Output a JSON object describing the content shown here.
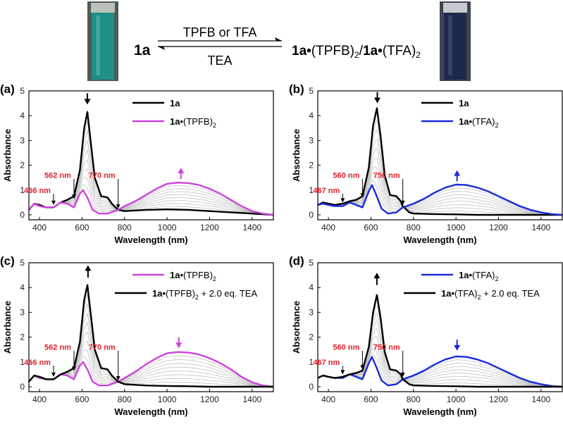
{
  "header": {
    "reactant": "1a",
    "forward_label": "TPFB or TFA",
    "reverse_label": "TEA",
    "product_bold_1": "1a•",
    "product_text_1": "(TPFB)",
    "product_sub_1": "2",
    "product_sep": "/",
    "product_bold_2": "1a•",
    "product_text_2": "(TFA)",
    "product_sub_2": "2",
    "left_vial_color": "#1d8f88",
    "right_vial_color": "#1b2a4a"
  },
  "chart_data": [
    {
      "type": "line",
      "panel_label": "(a)",
      "xlabel": "Wavelength (nm)",
      "ylabel": "Absorbance",
      "xlim": [
        350,
        1500
      ],
      "ylim": [
        -0.2,
        5
      ],
      "xticks": [
        "400",
        "600",
        "800",
        "1000",
        "1200",
        "1400"
      ],
      "yticks": [
        "0",
        "1",
        "2",
        "3",
        "4",
        "5"
      ],
      "legend_position": "top-right",
      "series": [
        {
          "name": "1a",
          "name_bold": "1a",
          "name_rest": "",
          "name_sub": "",
          "color": "#000000",
          "x": [
            350,
            375,
            400,
            430,
            466,
            500,
            530,
            562,
            590,
            610,
            625,
            640,
            660,
            690,
            720,
            740,
            770,
            800,
            900,
            1000,
            1100,
            1200,
            1300,
            1400,
            1500
          ],
          "y": [
            0.2,
            0.45,
            0.4,
            0.3,
            0.3,
            0.5,
            0.6,
            0.75,
            1.8,
            3.5,
            4.15,
            3.0,
            1.5,
            0.75,
            0.7,
            0.45,
            0.2,
            0.15,
            0.2,
            0.22,
            0.2,
            0.15,
            0.1,
            0.05,
            0.0
          ]
        },
        {
          "name": "1a•(TPFB)2",
          "name_bold": "1a•",
          "name_rest": "(TPFB)",
          "name_sub": "2",
          "color": "#cc44dd",
          "x": [
            350,
            375,
            400,
            430,
            466,
            500,
            530,
            562,
            590,
            605,
            625,
            650,
            680,
            720,
            770,
            800,
            850,
            900,
            950,
            1000,
            1050,
            1100,
            1150,
            1200,
            1250,
            1300,
            1350,
            1400,
            1450,
            1500
          ],
          "y": [
            0.2,
            0.45,
            0.35,
            0.3,
            0.3,
            0.5,
            0.45,
            0.3,
            0.85,
            1.0,
            0.7,
            0.2,
            0.05,
            0.05,
            0.2,
            0.35,
            0.55,
            0.8,
            1.05,
            1.25,
            1.3,
            1.28,
            1.2,
            1.05,
            0.85,
            0.6,
            0.35,
            0.15,
            0.05,
            0.0
          ]
        }
      ],
      "annotations": [
        {
          "text": "466 nm",
          "x": 466,
          "y": 1.0,
          "color": "#e0202a"
        },
        {
          "text": "562 nm",
          "x": 562,
          "y": 1.6,
          "color": "#e0202a"
        },
        {
          "text": "770 nm",
          "x": 770,
          "y": 1.6,
          "color": "#e0202a"
        }
      ],
      "arrows": [
        {
          "x": 625,
          "direction": "down",
          "color": "#000000",
          "y_from": 4.9,
          "y_to": 4.45
        },
        {
          "x": 1065,
          "direction": "up",
          "color": "#cc44dd",
          "y_from": 1.45,
          "y_to": 1.9
        }
      ],
      "markers": [
        {
          "x": 466,
          "y_top": 0.85,
          "y_bottom": 0.4
        },
        {
          "x": 562,
          "y_top": 1.45,
          "y_bottom": 0.65
        },
        {
          "x": 770,
          "y_top": 1.45,
          "y_bottom": 0.25
        }
      ]
    },
    {
      "type": "line",
      "panel_label": "(b)",
      "xlabel": "Wavelength (nm)",
      "ylabel": "Absorbance",
      "xlim": [
        350,
        1500
      ],
      "ylim": [
        -0.2,
        5
      ],
      "xticks": [
        "400",
        "600",
        "800",
        "1000",
        "1200",
        "1400"
      ],
      "yticks": [
        "0",
        "1",
        "2",
        "3",
        "4",
        "5"
      ],
      "legend_position": "top-right",
      "series": [
        {
          "name": "1a",
          "name_bold": "1a",
          "name_rest": "",
          "name_sub": "",
          "color": "#000000",
          "x": [
            350,
            375,
            400,
            430,
            467,
            500,
            530,
            560,
            590,
            610,
            628,
            645,
            665,
            690,
            720,
            740,
            750,
            780,
            800,
            900,
            1000,
            1100,
            1200,
            1300,
            1400,
            1500
          ],
          "y": [
            0.4,
            0.5,
            0.45,
            0.4,
            0.45,
            0.55,
            0.6,
            0.75,
            1.9,
            3.6,
            4.3,
            3.2,
            1.6,
            0.8,
            0.75,
            0.55,
            0.35,
            0.1,
            0.05,
            0.03,
            0.02,
            0.0,
            0.0,
            0.0,
            0.0,
            0.0
          ]
        },
        {
          "name": "1a•(TFA)2",
          "name_bold": "1a•",
          "name_rest": "(TFA)",
          "name_sub": "2",
          "color": "#1a2bd9",
          "x": [
            350,
            375,
            400,
            430,
            467,
            500,
            530,
            560,
            590,
            605,
            625,
            650,
            680,
            720,
            750,
            800,
            850,
            900,
            950,
            1000,
            1050,
            1100,
            1150,
            1200,
            1250,
            1300,
            1350,
            1400,
            1450,
            1500
          ],
          "y": [
            0.4,
            0.45,
            0.4,
            0.35,
            0.35,
            0.5,
            0.4,
            0.3,
            0.95,
            1.2,
            0.8,
            0.25,
            0.05,
            0.1,
            0.3,
            0.45,
            0.65,
            0.9,
            1.1,
            1.22,
            1.2,
            1.1,
            0.95,
            0.75,
            0.55,
            0.35,
            0.2,
            0.1,
            0.03,
            0.0
          ]
        }
      ],
      "annotations": [
        {
          "text": "467 nm",
          "x": 467,
          "y": 1.0,
          "color": "#e0202a"
        },
        {
          "text": "560 nm",
          "x": 560,
          "y": 1.6,
          "color": "#e0202a"
        },
        {
          "text": "750 nm",
          "x": 750,
          "y": 1.6,
          "color": "#e0202a"
        }
      ],
      "arrows": [
        {
          "x": 630,
          "direction": "down",
          "color": "#000000",
          "y_from": 4.95,
          "y_to": 4.5
        },
        {
          "x": 1005,
          "direction": "up",
          "color": "#1a2bd9",
          "y_from": 1.35,
          "y_to": 1.8
        }
      ],
      "markers": [
        {
          "x": 467,
          "y_top": 0.85,
          "y_bottom": 0.5
        },
        {
          "x": 560,
          "y_top": 1.45,
          "y_bottom": 0.7
        },
        {
          "x": 750,
          "y_top": 1.45,
          "y_bottom": 0.4
        }
      ]
    },
    {
      "type": "line",
      "panel_label": "(c)",
      "xlabel": "Wavelength (nm)",
      "ylabel": "Absorbance",
      "xlim": [
        350,
        1500
      ],
      "ylim": [
        -0.2,
        5
      ],
      "xticks": [
        "400",
        "600",
        "800",
        "1000",
        "1200",
        "1400"
      ],
      "yticks": [
        "0",
        "1",
        "2",
        "3",
        "4",
        "5"
      ],
      "legend_position": "top-right",
      "series": [
        {
          "name": "1a•(TPFB)2",
          "name_bold": "1a•",
          "name_rest": "(TPFB)",
          "name_sub": "2",
          "color": "#cc44dd",
          "x": [
            350,
            375,
            400,
            430,
            466,
            500,
            530,
            562,
            590,
            605,
            625,
            650,
            680,
            720,
            770,
            800,
            850,
            900,
            950,
            1000,
            1050,
            1100,
            1150,
            1200,
            1250,
            1300,
            1350,
            1400,
            1450,
            1500
          ],
          "y": [
            0.2,
            0.45,
            0.35,
            0.3,
            0.3,
            0.5,
            0.45,
            0.3,
            0.85,
            1.0,
            0.7,
            0.2,
            0.05,
            0.05,
            0.2,
            0.35,
            0.6,
            0.9,
            1.15,
            1.35,
            1.4,
            1.38,
            1.3,
            1.15,
            0.95,
            0.7,
            0.4,
            0.18,
            0.05,
            0.0
          ]
        },
        {
          "name": "1a•(TPFB)2 + 2.0 eq. TEA",
          "name_bold": "1a•",
          "name_rest": "(TPFB)",
          "name_sub": "2",
          "name_tail": " + 2.0 eq. TEA",
          "color": "#000000",
          "x": [
            350,
            375,
            400,
            430,
            466,
            500,
            530,
            562,
            590,
            610,
            625,
            640,
            660,
            690,
            720,
            740,
            770,
            800,
            900,
            1000,
            1100,
            1200,
            1300,
            1400,
            1500
          ],
          "y": [
            0.2,
            0.45,
            0.4,
            0.3,
            0.3,
            0.5,
            0.6,
            0.75,
            1.8,
            3.5,
            4.1,
            3.0,
            1.5,
            0.75,
            0.7,
            0.45,
            0.2,
            0.1,
            0.05,
            0.03,
            0.02,
            0.0,
            0.0,
            0.0,
            0.0
          ]
        }
      ],
      "annotations": [
        {
          "text": "466 nm",
          "x": 466,
          "y": 1.0,
          "color": "#e0202a"
        },
        {
          "text": "562 nm",
          "x": 562,
          "y": 1.6,
          "color": "#e0202a"
        },
        {
          "text": "770 nm",
          "x": 770,
          "y": 1.6,
          "color": "#e0202a"
        }
      ],
      "arrows": [
        {
          "x": 628,
          "direction": "up",
          "color": "#000000",
          "y_from": 4.4,
          "y_to": 4.9
        },
        {
          "x": 1055,
          "direction": "down",
          "color": "#cc44dd",
          "y_from": 2.0,
          "y_to": 1.55
        }
      ],
      "markers": [
        {
          "x": 466,
          "y_top": 0.85,
          "y_bottom": 0.4
        },
        {
          "x": 562,
          "y_top": 1.45,
          "y_bottom": 0.65
        },
        {
          "x": 770,
          "y_top": 1.45,
          "y_bottom": 0.25
        }
      ]
    },
    {
      "type": "line",
      "panel_label": "(d)",
      "xlabel": "Wavelength (nm)",
      "ylabel": "Absorbance",
      "xlim": [
        350,
        1500
      ],
      "ylim": [
        -0.2,
        5
      ],
      "xticks": [
        "400",
        "600",
        "800",
        "1000",
        "1200",
        "1400"
      ],
      "yticks": [
        "0",
        "1",
        "2",
        "3",
        "4",
        "5"
      ],
      "legend_position": "top-right",
      "series": [
        {
          "name": "1a•(TFA)2",
          "name_bold": "1a•",
          "name_rest": "(TFA)",
          "name_sub": "2",
          "color": "#1a2bd9",
          "x": [
            350,
            375,
            400,
            430,
            467,
            500,
            530,
            560,
            590,
            605,
            625,
            650,
            680,
            720,
            750,
            800,
            850,
            900,
            950,
            1000,
            1050,
            1100,
            1150,
            1200,
            1250,
            1300,
            1350,
            1400,
            1450,
            1500
          ],
          "y": [
            0.35,
            0.45,
            0.4,
            0.35,
            0.35,
            0.5,
            0.4,
            0.3,
            0.95,
            1.2,
            0.8,
            0.25,
            0.05,
            0.1,
            0.3,
            0.45,
            0.65,
            0.9,
            1.1,
            1.22,
            1.2,
            1.1,
            0.95,
            0.75,
            0.55,
            0.35,
            0.2,
            0.1,
            0.03,
            0.0
          ]
        },
        {
          "name": "1a•(TFA)2 + 2.0 eq. TEA",
          "name_bold": "1a•",
          "name_rest": "(TFA)",
          "name_sub": "2",
          "name_tail": " + 2.0 eq. TEA",
          "color": "#000000",
          "x": [
            350,
            375,
            400,
            430,
            467,
            500,
            530,
            560,
            590,
            610,
            628,
            645,
            665,
            690,
            720,
            740,
            750,
            780,
            800,
            900,
            1000,
            1100,
            1200,
            1300,
            1400,
            1500
          ],
          "y": [
            0.35,
            0.45,
            0.4,
            0.35,
            0.4,
            0.5,
            0.55,
            0.65,
            1.6,
            3.0,
            3.7,
            2.8,
            1.4,
            0.7,
            0.65,
            0.5,
            0.3,
            0.1,
            0.05,
            0.03,
            0.02,
            0.0,
            0.0,
            0.0,
            0.0,
            0.0
          ]
        }
      ],
      "annotations": [
        {
          "text": "467 nm",
          "x": 467,
          "y": 1.0,
          "color": "#e0202a"
        },
        {
          "text": "560 nm",
          "x": 560,
          "y": 1.6,
          "color": "#e0202a"
        },
        {
          "text": "750 nm",
          "x": 750,
          "y": 1.6,
          "color": "#e0202a"
        }
      ],
      "arrows": [
        {
          "x": 628,
          "direction": "up",
          "color": "#000000",
          "y_from": 4.1,
          "y_to": 4.6
        },
        {
          "x": 1005,
          "direction": "down",
          "color": "#1a2bd9",
          "y_from": 1.9,
          "y_to": 1.45
        }
      ],
      "markers": [
        {
          "x": 467,
          "y_top": 0.85,
          "y_bottom": 0.5
        },
        {
          "x": 560,
          "y_top": 1.45,
          "y_bottom": 0.7
        },
        {
          "x": 750,
          "y_top": 1.45,
          "y_bottom": 0.4
        }
      ]
    }
  ]
}
